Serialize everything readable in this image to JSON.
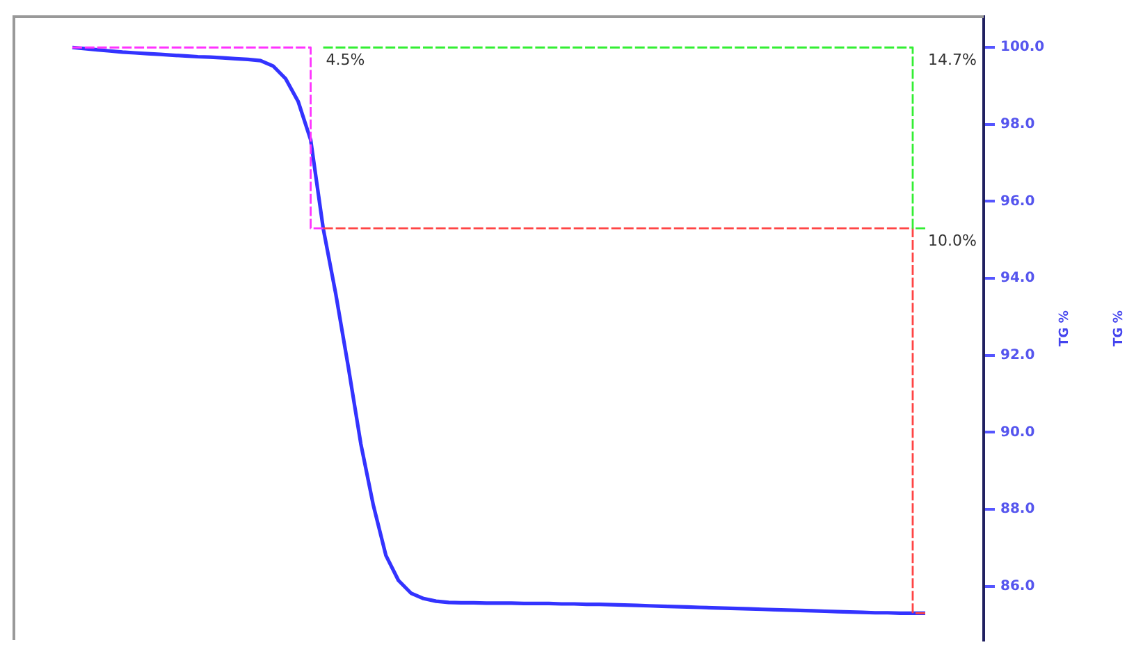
{
  "chart_data": {
    "type": "line",
    "categories": [
      null,
      null,
      null,
      null,
      null,
      null,
      null,
      null,
      null,
      null,
      null,
      null,
      null,
      null,
      null,
      null,
      null,
      null,
      null,
      null,
      null,
      null,
      null,
      null,
      null,
      null,
      null,
      null,
      null,
      null,
      null,
      null,
      null,
      null,
      null,
      null,
      null,
      null,
      null,
      null,
      null,
      null,
      null,
      null,
      null,
      null,
      null,
      null,
      null,
      null,
      null,
      null,
      null,
      null,
      null,
      null,
      null,
      null,
      null,
      null,
      null,
      null,
      null,
      null,
      null,
      null,
      null,
      null,
      null
    ],
    "series": [
      {
        "type": "line",
        "color": "#3333ff",
        "values": [
          100.0,
          99.97,
          99.94,
          99.91,
          99.88,
          99.86,
          99.84,
          99.82,
          99.8,
          99.78,
          99.76,
          99.75,
          99.73,
          99.71,
          99.69,
          99.66,
          99.52,
          99.19,
          98.6,
          97.6,
          95.3,
          93.6,
          91.7,
          89.7,
          88.1,
          86.8,
          86.15,
          85.82,
          85.68,
          85.61,
          85.58,
          85.57,
          85.57,
          85.56,
          85.56,
          85.56,
          85.55,
          85.55,
          85.55,
          85.54,
          85.54,
          85.53,
          85.53,
          85.52,
          85.51,
          85.5,
          85.49,
          85.48,
          85.47,
          85.46,
          85.45,
          85.44,
          85.43,
          85.42,
          85.41,
          85.4,
          85.39,
          85.38,
          85.37,
          85.36,
          85.35,
          85.34,
          85.33,
          85.32,
          85.31,
          85.31,
          85.3,
          85.3,
          85.3
        ]
      },
      {
        "type": "step",
        "color": "#ff33ff",
        "line_style": "dashed",
        "values": [
          100.0,
          100.0,
          100.0,
          100.0,
          100.0,
          100.0,
          100.0,
          100.0,
          100.0,
          100.0,
          100.0,
          100.0,
          100.0,
          100.0,
          100.0,
          100.0,
          100.0,
          100.0,
          100.0,
          100.0,
          95.3,
          null,
          null,
          null,
          null,
          null,
          null,
          null,
          null,
          null,
          null,
          null,
          null,
          null,
          null,
          null,
          null,
          null,
          null,
          null,
          null,
          null,
          null,
          null,
          null,
          null,
          null,
          null,
          null,
          null,
          null,
          null,
          null,
          null,
          null,
          null,
          null,
          null,
          null,
          null,
          null,
          null,
          null,
          null,
          null,
          null,
          null,
          null,
          null
        ]
      },
      {
        "type": "step",
        "color": "#33ee33",
        "line_style": "dashed",
        "values": [
          null,
          null,
          null,
          null,
          null,
          null,
          null,
          null,
          null,
          null,
          null,
          null,
          null,
          null,
          null,
          null,
          null,
          null,
          null,
          null,
          100.0,
          100.0,
          100.0,
          100.0,
          100.0,
          100.0,
          100.0,
          100.0,
          100.0,
          100.0,
          100.0,
          100.0,
          100.0,
          100.0,
          100.0,
          100.0,
          100.0,
          100.0,
          100.0,
          100.0,
          100.0,
          100.0,
          100.0,
          100.0,
          100.0,
          100.0,
          100.0,
          100.0,
          100.0,
          100.0,
          100.0,
          100.0,
          100.0,
          100.0,
          100.0,
          100.0,
          100.0,
          100.0,
          100.0,
          100.0,
          100.0,
          100.0,
          100.0,
          100.0,
          100.0,
          100.0,
          100.0,
          100.0,
          95.3
        ]
      },
      {
        "type": "step",
        "color": "#ff4444",
        "line_style": "dashed",
        "values": [
          null,
          null,
          null,
          null,
          null,
          null,
          null,
          null,
          null,
          null,
          null,
          null,
          null,
          null,
          null,
          null,
          null,
          null,
          null,
          null,
          95.3,
          95.3,
          95.3,
          95.3,
          95.3,
          95.3,
          95.3,
          95.3,
          95.3,
          95.3,
          95.3,
          95.3,
          95.3,
          95.3,
          95.3,
          95.3,
          95.3,
          95.3,
          95.3,
          95.3,
          95.3,
          95.3,
          95.3,
          95.3,
          95.3,
          95.3,
          95.3,
          95.3,
          95.3,
          95.3,
          95.3,
          95.3,
          95.3,
          95.3,
          95.3,
          95.3,
          95.3,
          95.3,
          95.3,
          95.3,
          95.3,
          95.3,
          95.3,
          95.3,
          95.3,
          95.3,
          95.3,
          95.3,
          85.3
        ]
      }
    ],
    "annotations": [
      {
        "text": "4.5%",
        "y": 100
      },
      "14.7%",
      "10.0%",
      "TG %",
      "TG %"
    ],
    "ylim": [
      84.6,
      100.8
    ],
    "yticks": [
      {
        "value": 86,
        "label": "86.0"
      },
      {
        "value": 88,
        "label": "88.0"
      },
      {
        "value": 90,
        "label": "90.0"
      },
      {
        "value": 92,
        "label": "92.0"
      },
      {
        "value": 94,
        "label": "94.0"
      },
      {
        "value": 96,
        "label": "96.0"
      },
      {
        "value": 98,
        "label": "98.0"
      },
      {
        "value": 100,
        "label": "100.0"
      }
    ],
    "tick_labels": "y",
    "grid": false,
    "legend": false,
    "marker": "none"
  }
}
